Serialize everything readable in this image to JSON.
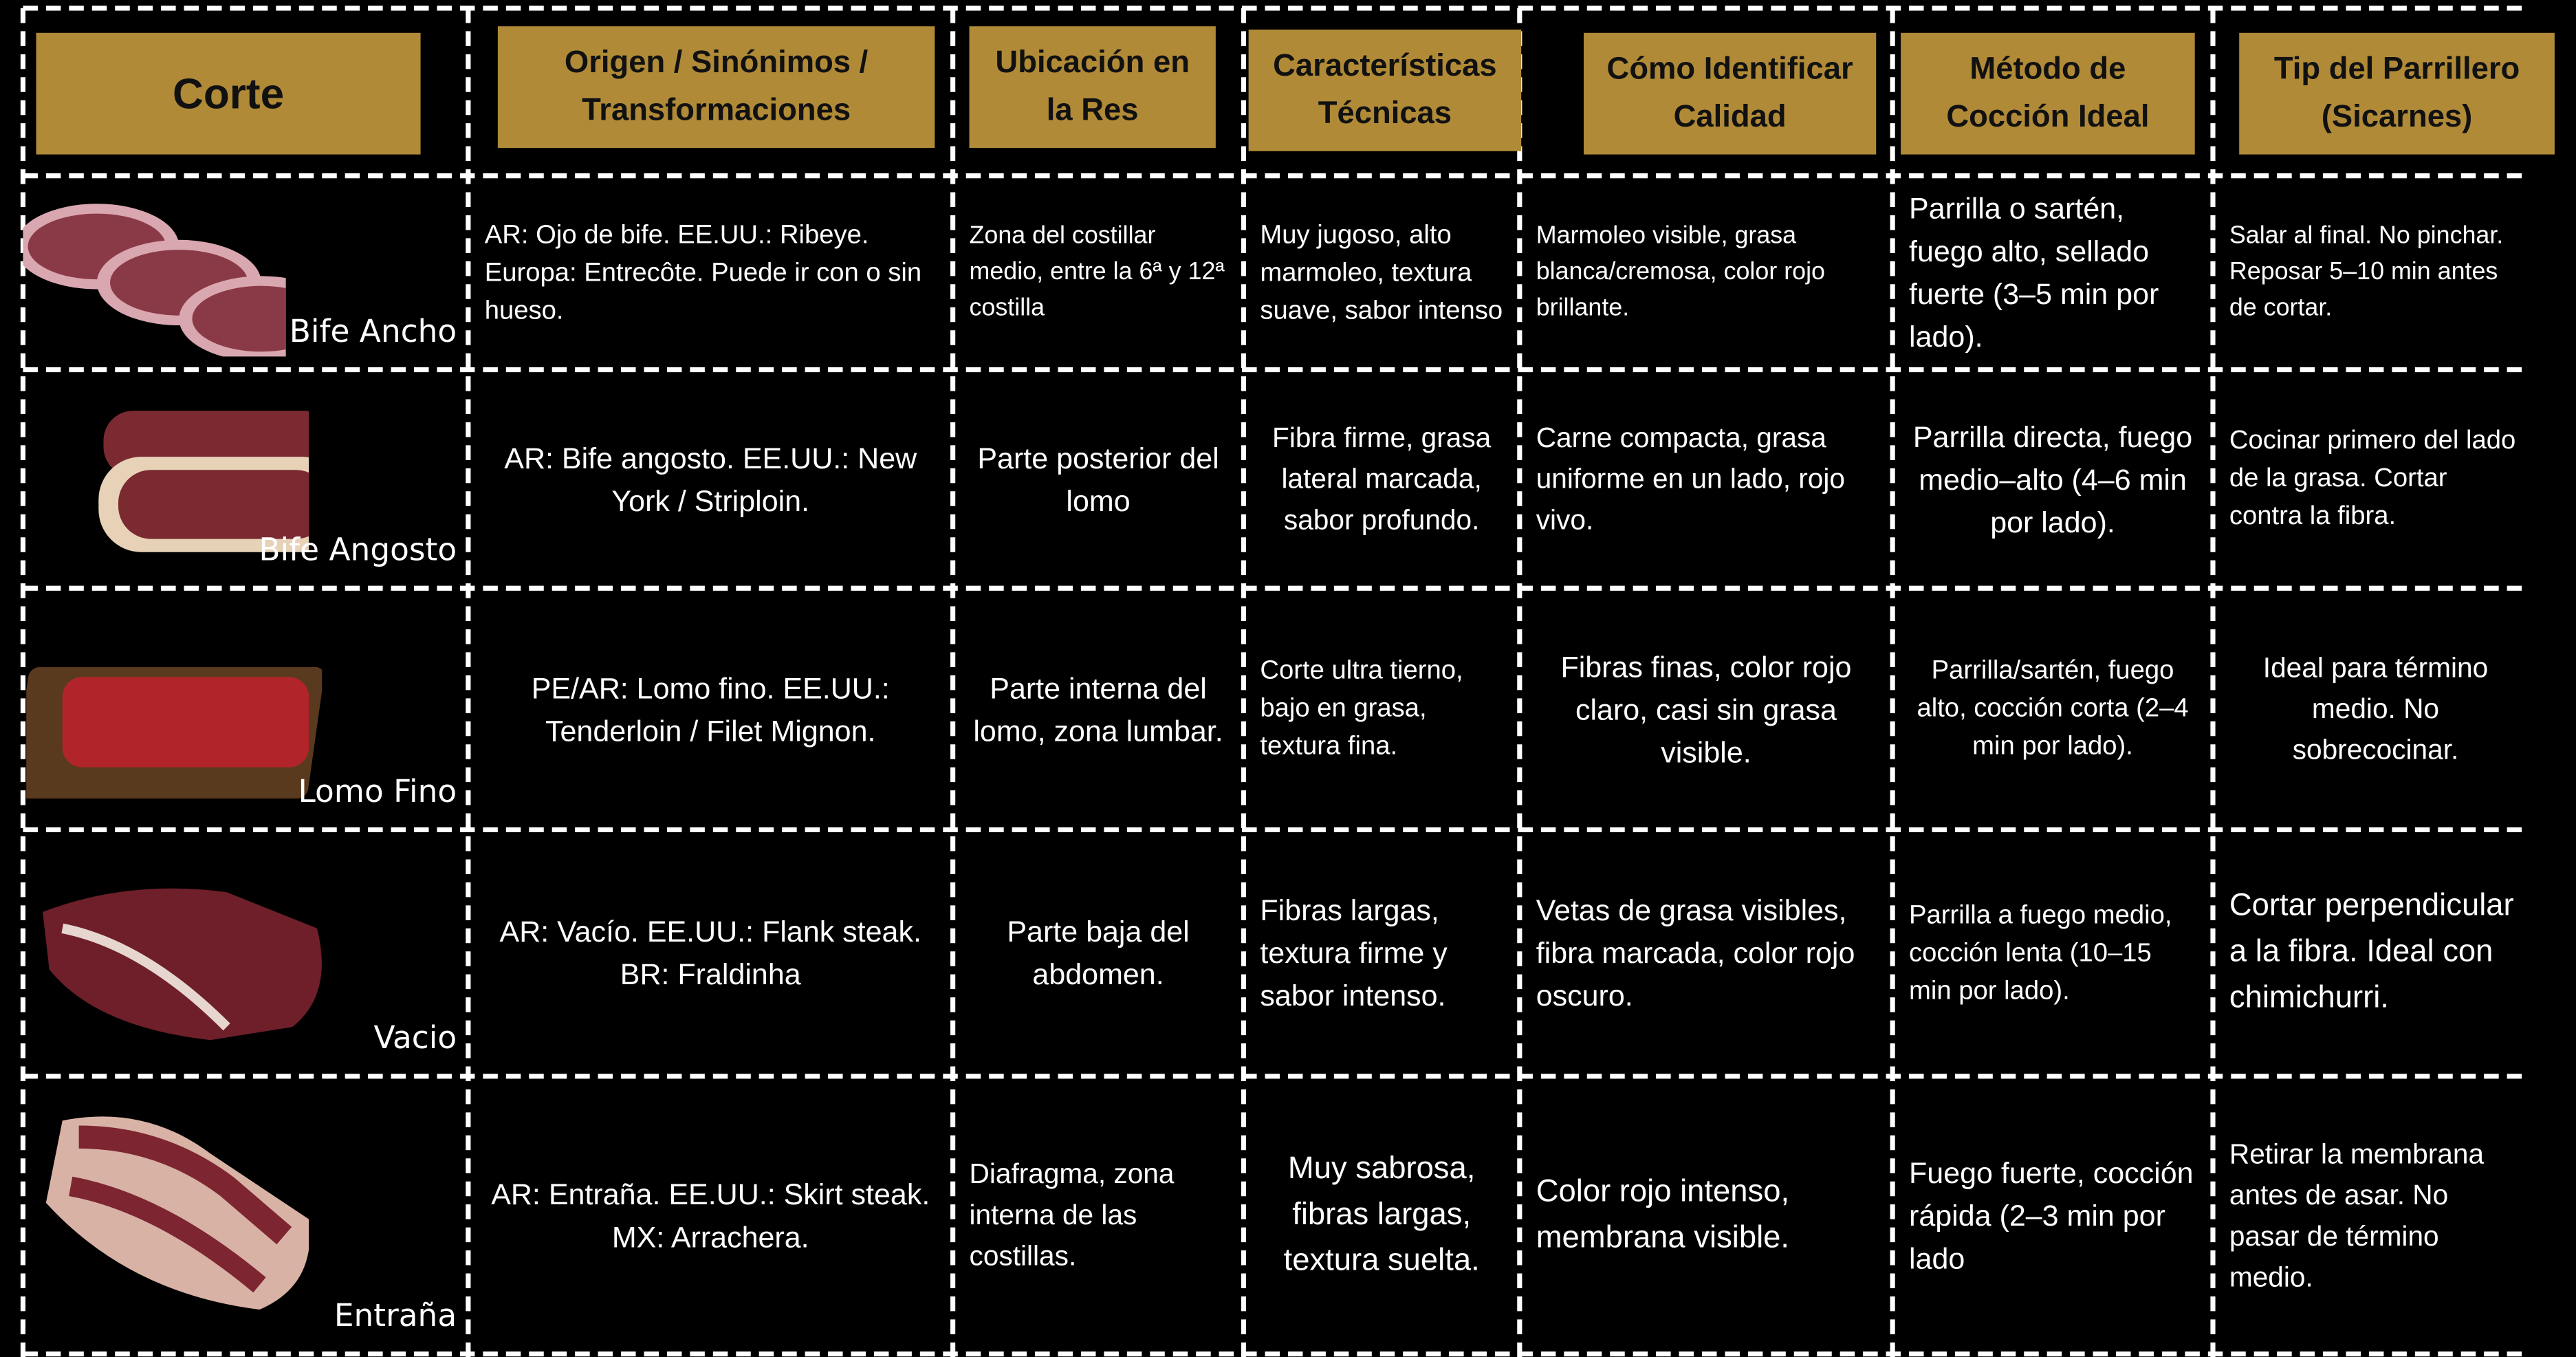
{
  "table": {
    "headers": [
      "Corte",
      "Origen / Sinónimos / Transformaciones",
      "Ubicación en la Res",
      "Características Técnicas",
      "Cómo Identificar Calidad",
      "Método de Cocción Ideal",
      "Tip del Parrillero (Sicarnes)"
    ],
    "rows": [
      [
        "Bife Ancho",
        "AR: Ojo de bife. EE.UU.: Ribeye. Europa: Entrecôte. Puede ir con o sin hueso.",
        "Zona del costillar medio, entre la 6ª y 12ª costilla",
        "Muy jugoso, alto marmoleo, textura suave, sabor intenso",
        "Marmoleo visible, grasa blanca/cremosa, color rojo brillante.",
        "Parrilla o sartén, fuego alto, sellado fuerte (3–5 min por lado).",
        "Salar al final. No pinchar. Reposar 5–10 min antes de cortar."
      ],
      [
        "Bife Angosto",
        "AR: Bife angosto. EE.UU.: New York / Striploin.",
        "Parte posterior del lomo",
        "Fibra firme, grasa lateral marcada, sabor profundo.",
        "Carne compacta, grasa uniforme en un lado, rojo vivo.",
        "Parrilla directa, fuego medio–alto (4–6 min por lado).",
        "Cocinar primero del lado de la grasa. Cortar contra la fibra."
      ],
      [
        "Lomo Fino",
        "PE/AR: Lomo fino. EE.UU.: Tenderloin / Filet Mignon.",
        "Parte interna del lomo, zona lumbar.",
        "Corte ultra tierno, bajo en grasa, textura fina.",
        "Fibras finas, color rojo claro, casi sin grasa visible.",
        "Parrilla/sartén, fuego alto, cocción corta (2–4 min por lado).",
        "Ideal para término medio. No sobrecocinar."
      ],
      [
        "Vacio",
        "AR: Vacío. EE.UU.: Flank steak. BR: Fraldinha",
        "Parte baja del abdomen.",
        "Fibras largas, textura firme y sabor intenso.",
        "Vetas de grasa visibles, fibra marcada, color rojo oscuro.",
        "Parrilla a fuego medio, cocción lenta (10–15 min por lado).",
        "Cortar perpendicular a la fibra. Ideal con chimichurri."
      ],
      [
        "Entraña",
        "AR: Entraña. EE.UU.: Skirt steak. MX: Arrachera.",
        "Diafragma, zona interna de las costillas.",
        "Muy sabrosa, fibras largas, textura suelta.",
        "Color rojo intenso, membrana visible.",
        "Fuego fuerte, cocción rápida (2–3 min por lado",
        "Retirar la membrana antes de asar. No pasar de término medio."
      ]
    ]
  }
}
